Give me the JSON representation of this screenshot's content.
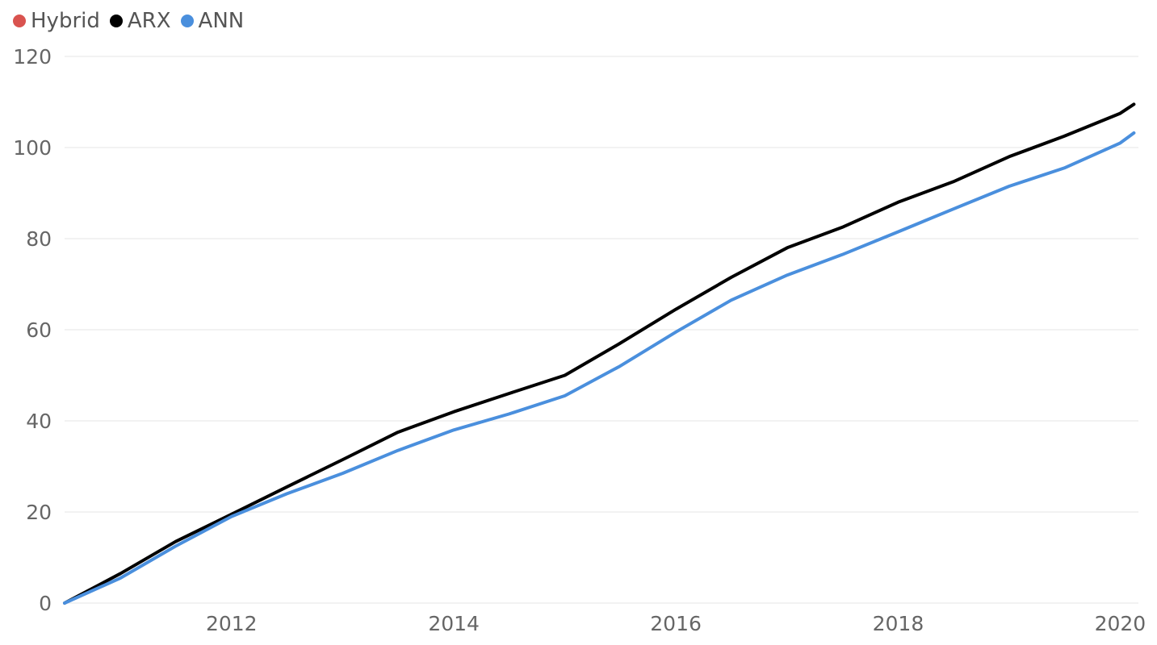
{
  "chart_data": {
    "type": "line",
    "title": "",
    "xlabel": "",
    "ylabel": "",
    "x_ticks": [
      "2012",
      "2014",
      "2016",
      "2018",
      "2020"
    ],
    "y_ticks": [
      "0",
      "20",
      "40",
      "60",
      "80",
      "100",
      "120"
    ],
    "ylim": [
      0,
      120
    ],
    "xlim": [
      "2010-07-01",
      "2020-03-01"
    ],
    "grid": "horizontal",
    "legend_position": "top-left",
    "series": [
      {
        "name": "Hybrid",
        "color": "#d9534f",
        "x": [],
        "y": []
      },
      {
        "name": "ARX",
        "color": "#000000",
        "x": [
          "2010-07-01",
          "2011-01-01",
          "2011-07-01",
          "2012-01-01",
          "2012-07-01",
          "2013-01-01",
          "2013-07-01",
          "2014-01-01",
          "2014-07-01",
          "2015-01-01",
          "2015-07-01",
          "2016-01-01",
          "2016-07-01",
          "2017-01-01",
          "2017-07-01",
          "2018-01-01",
          "2018-07-01",
          "2019-01-01",
          "2019-07-01",
          "2020-01-01",
          "2020-02-15"
        ],
        "y": [
          0,
          6.5,
          13.5,
          19.5,
          25.5,
          31.5,
          37.5,
          42.0,
          46.0,
          50.0,
          57.0,
          64.5,
          71.5,
          78.0,
          82.5,
          88.0,
          92.5,
          98.0,
          102.5,
          107.5,
          109.5
        ]
      },
      {
        "name": "ANN",
        "color": "#4a8fdd",
        "x": [
          "2010-07-01",
          "2011-01-01",
          "2011-07-01",
          "2012-01-01",
          "2012-07-01",
          "2013-01-01",
          "2013-07-01",
          "2014-01-01",
          "2014-07-01",
          "2015-01-01",
          "2015-07-01",
          "2016-01-01",
          "2016-07-01",
          "2017-01-01",
          "2017-07-01",
          "2018-01-01",
          "2018-07-01",
          "2019-01-01",
          "2019-07-01",
          "2020-01-01",
          "2020-02-15"
        ],
        "y": [
          0,
          5.5,
          12.5,
          19.0,
          24.0,
          28.5,
          33.5,
          38.0,
          41.5,
          45.5,
          52.0,
          59.5,
          66.5,
          72.0,
          76.5,
          81.5,
          86.5,
          91.5,
          95.5,
          101.0,
          103.2
        ]
      }
    ]
  }
}
